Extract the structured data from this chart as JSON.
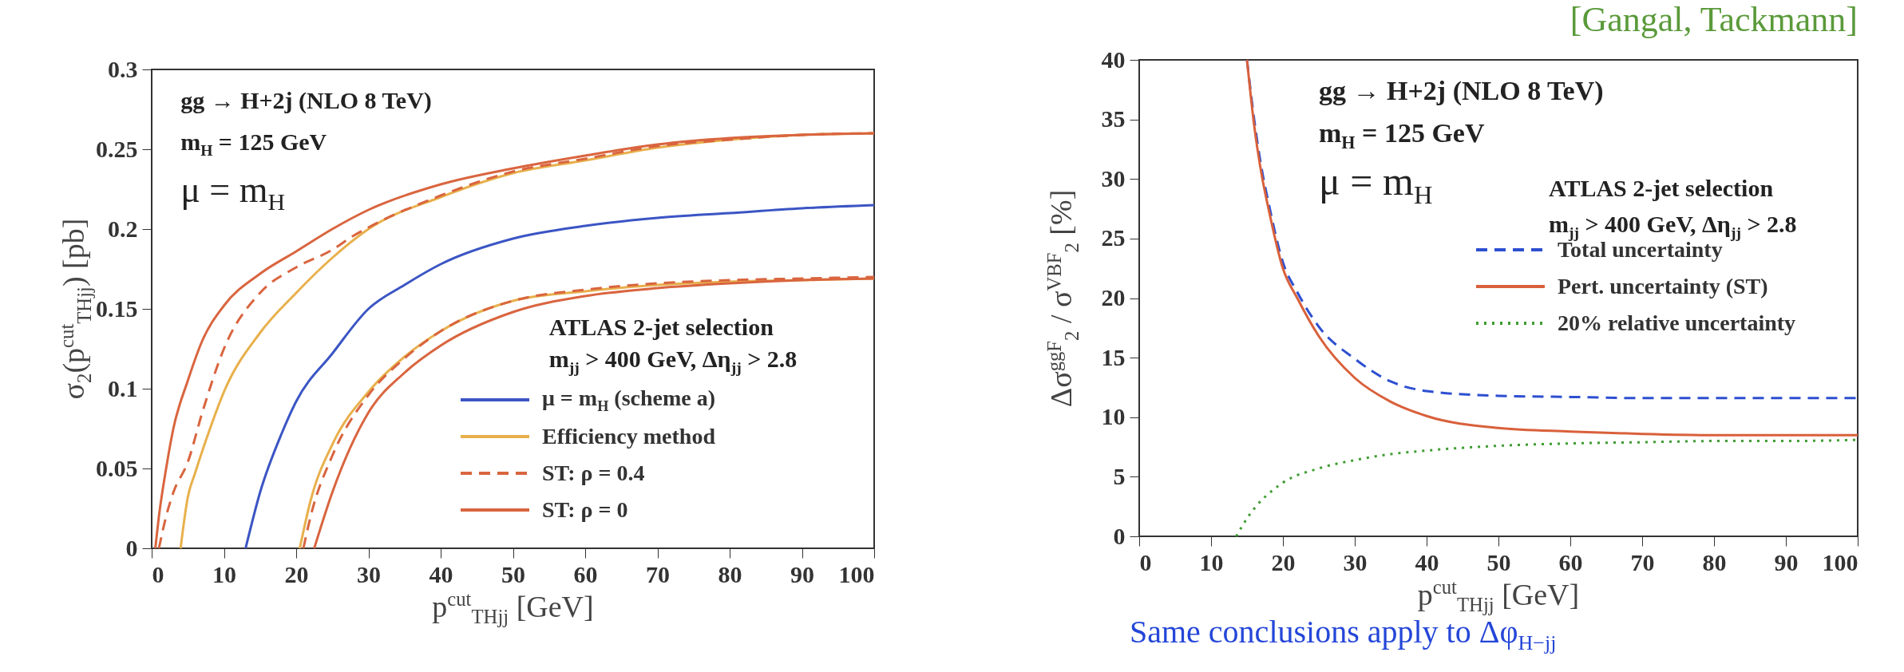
{
  "chart_data": [
    {
      "type": "line",
      "xlabel": "p$^{cut}$$_{THjj}$ [GeV]",
      "ylabel": "σ$_{2}$(p$^{cut}$$_{THjj}$) [pb]",
      "xlim": [
        0,
        100
      ],
      "xticks": [
        0,
        10,
        20,
        30,
        40,
        50,
        60,
        70,
        80,
        90,
        100
      ],
      "ylim": [
        0,
        0.3
      ],
      "yticks": [
        0,
        0.05,
        0.1,
        0.15,
        0.2,
        0.25,
        0.3
      ],
      "legend": "bottom right",
      "annotations": [
        "gg → H+2j (NLO 8 TeV)",
        "m$_{H}$ = 125 GeV",
        "μ = m$_{H}$",
        "ATLAS 2-jet selection",
        "m$_{jj}$ > 400 GeV, Δη$_{jj}$ > 2.8"
      ],
      "series": [
        {
          "name": "μ = m$_{H}$ (scheme a)",
          "color": "#3b55c4",
          "line_style": "solid",
          "x": [
            13,
            15,
            18,
            20,
            25,
            30,
            35,
            40,
            50,
            60,
            70,
            80,
            90,
            100
          ],
          "values": [
            0,
            0.035,
            0.072,
            0.092,
            0.122,
            0.15,
            0.165,
            0.178,
            0.194,
            0.202,
            0.207,
            0.21,
            0.213,
            0.215
          ]
        },
        {
          "name": "Efficiency method",
          "color": "#e8b04c",
          "line_style": "solid",
          "x": [
            4,
            5,
            6,
            8,
            10,
            15,
            20,
            25,
            30,
            40,
            50,
            60,
            70,
            80,
            90,
            100
          ],
          "values": [
            0,
            0.032,
            0.047,
            0.074,
            0.098,
            0.135,
            0.16,
            0.182,
            0.2,
            0.22,
            0.235,
            0.243,
            0.251,
            0.256,
            0.259,
            0.26
          ]
        },
        {
          "name": "ST: ρ = 0.4",
          "color": "#d9653f",
          "line_style": "dashed",
          "x": [
            1,
            2,
            3,
            5,
            7,
            10,
            15,
            20,
            25,
            28,
            30,
            40,
            50,
            60,
            70,
            80,
            90,
            100
          ],
          "values": [
            0,
            0.02,
            0.035,
            0.054,
            0.085,
            0.125,
            0.16,
            0.176,
            0.187,
            0.196,
            0.201,
            0.221,
            0.236,
            0.244,
            0.252,
            0.256,
            0.259,
            0.26
          ]
        },
        {
          "name": "ST: ρ = 0",
          "color": "#d9653f",
          "line_style": "solid",
          "x": [
            0.5,
            1,
            2,
            3,
            5,
            7,
            10,
            15,
            20,
            25,
            30,
            40,
            50,
            60,
            70,
            80,
            90,
            100
          ],
          "values": [
            0,
            0.02,
            0.05,
            0.075,
            0.105,
            0.13,
            0.152,
            0.172,
            0.186,
            0.2,
            0.212,
            0.228,
            0.238,
            0.246,
            0.253,
            0.257,
            0.259,
            0.26
          ]
        },
        {
          "color": "#e8b04c",
          "line_style": "solid",
          "x": [
            20.5,
            22,
            25,
            30,
            35,
            40,
            50,
            60,
            70,
            80,
            90,
            100
          ],
          "values": [
            0,
            0.03,
            0.065,
            0.098,
            0.12,
            0.136,
            0.155,
            0.161,
            0.165,
            0.167,
            0.168,
            0.169
          ]
        },
        {
          "color": "#d9653f",
          "line_style": "dashed",
          "x": [
            21,
            22,
            25,
            30,
            35,
            40,
            50,
            60,
            70,
            80,
            90,
            100
          ],
          "values": [
            0,
            0.02,
            0.058,
            0.096,
            0.119,
            0.136,
            0.155,
            0.162,
            0.166,
            0.168,
            0.169,
            0.17
          ]
        },
        {
          "color": "#d9653f",
          "line_style": "solid",
          "x": [
            22.5,
            25,
            30,
            35,
            40,
            50,
            60,
            70,
            80,
            90,
            100
          ],
          "values": [
            0,
            0.035,
            0.085,
            0.11,
            0.127,
            0.148,
            0.158,
            0.163,
            0.166,
            0.168,
            0.169
          ]
        }
      ]
    },
    {
      "type": "line",
      "xlabel": "p$^{cut}$$_{THjj}$ [GeV]",
      "ylabel": "Δσ$^{ggF}$$_{2}$ / σ$^{VBF}$$_{2}$ [%]",
      "xlim": [
        0,
        100
      ],
      "xticks": [
        0,
        10,
        20,
        30,
        40,
        50,
        60,
        70,
        80,
        90,
        100
      ],
      "ylim": [
        0,
        40
      ],
      "yticks": [
        0,
        5,
        10,
        15,
        20,
        25,
        30,
        35,
        40
      ],
      "legend": "right",
      "annotations": [
        "gg → H+2j (NLO 8 TeV)",
        "m$_{H}$ = 125 GeV",
        "μ = m$_{H}$",
        "ATLAS 2-jet selection",
        "m$_{jj}$ > 400 GeV, Δη$_{jj}$ > 2.8",
        "[Gangal, Tackmann]",
        "Same conclusions apply to Δφ$_{H−jj}$"
      ],
      "series": [
        {
          "name": "Total uncertainty",
          "color": "#2d4fd0",
          "line_style": "dashed",
          "x": [
            15,
            16,
            17,
            18,
            20,
            22,
            25,
            30,
            35,
            40,
            50,
            60,
            70,
            80,
            90,
            100
          ],
          "values": [
            40,
            35,
            31,
            28,
            23,
            20.5,
            17.6,
            14.9,
            13,
            12.2,
            11.8,
            11.7,
            11.6,
            11.6,
            11.6,
            11.6
          ]
        },
        {
          "name": "Pert. uncertainty (ST)",
          "color": "#d9603b",
          "line_style": "solid",
          "x": [
            15,
            16,
            17,
            18,
            20,
            22,
            25,
            30,
            35,
            40,
            50,
            60,
            70,
            80,
            90,
            100
          ],
          "values": [
            40,
            34.5,
            30.5,
            27.5,
            22.5,
            20,
            16.8,
            13.3,
            11.3,
            10.1,
            9.1,
            8.8,
            8.6,
            8.5,
            8.5,
            8.5
          ]
        },
        {
          "name": "20% relative uncertainty",
          "color": "#3f9d32",
          "line_style": "dotted",
          "x": [
            13.5,
            15,
            20,
            25,
            30,
            35,
            40,
            50,
            60,
            70,
            80,
            90,
            100
          ],
          "values": [
            0,
            1.5,
            4.5,
            5.7,
            6.4,
            6.9,
            7.2,
            7.6,
            7.8,
            7.9,
            8,
            8,
            8.1
          ]
        }
      ]
    }
  ]
}
